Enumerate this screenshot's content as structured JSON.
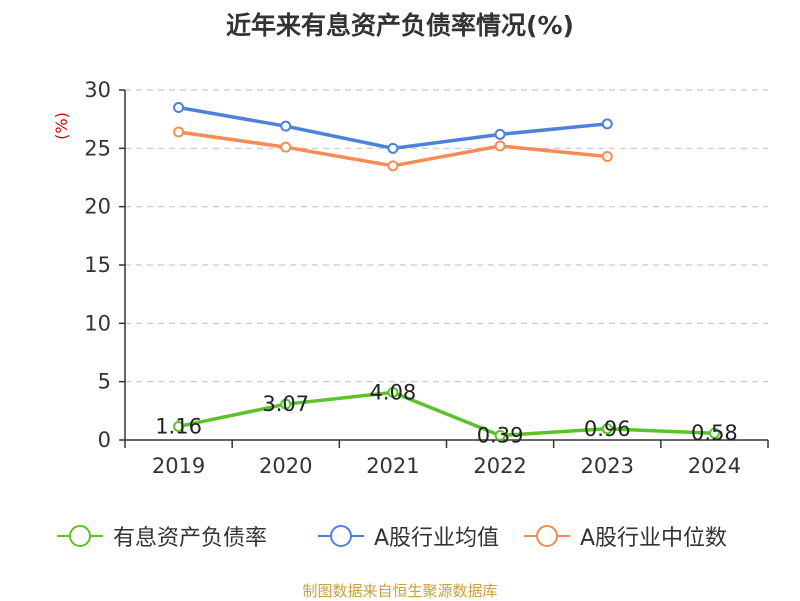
{
  "chart_data": {
    "type": "line",
    "title": "近年来有息资产负债率情况(%)",
    "unit_label": "(%)",
    "categories": [
      "2019",
      "2020",
      "2021",
      "2022",
      "2023",
      "2024"
    ],
    "ylim": [
      0,
      30
    ],
    "y_ticks": [
      0,
      5,
      10,
      15,
      20,
      25,
      30
    ],
    "grid": true,
    "legend_position": "bottom",
    "series": [
      {
        "name": "有息资产负债率",
        "color": "#5bc22a",
        "values": [
          1.16,
          3.07,
          4.08,
          0.39,
          0.96,
          0.58
        ],
        "labels": [
          "1.16",
          "3.07",
          "4.08",
          "0.39",
          "0.96",
          "0.58"
        ]
      },
      {
        "name": "A股行业均值",
        "color": "#4f81d8",
        "values": [
          28.5,
          26.9,
          25.0,
          26.2,
          27.1,
          null
        ]
      },
      {
        "name": "A股行业中位数",
        "color": "#f58b55",
        "values": [
          26.4,
          25.1,
          23.5,
          25.2,
          24.3,
          null
        ]
      }
    ]
  },
  "source_note": "制图数据来自恒生聚源数据库"
}
